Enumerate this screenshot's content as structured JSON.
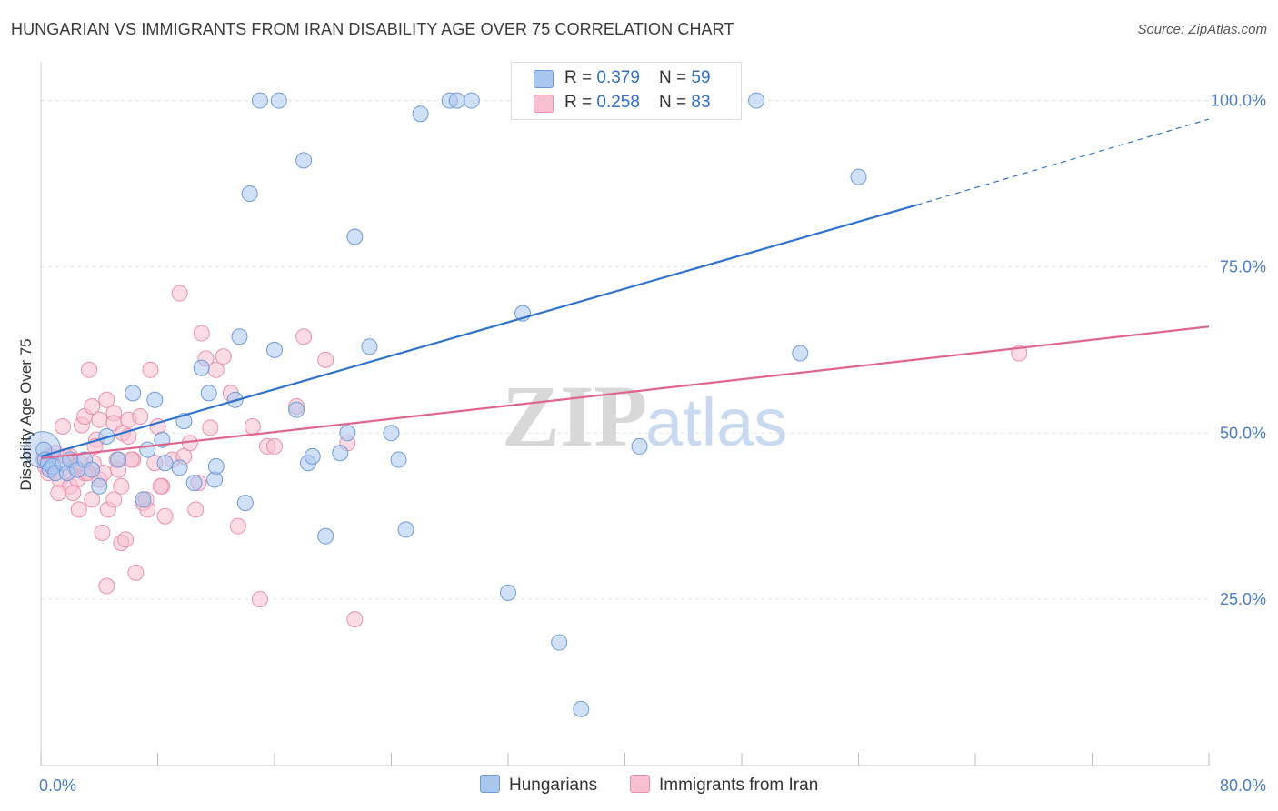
{
  "title": "HUNGARIAN VS IMMIGRANTS FROM IRAN DISABILITY AGE OVER 75 CORRELATION CHART",
  "source": "Source: ZipAtlas.com",
  "watermark": {
    "zip": "ZIP",
    "atlas": "atlas"
  },
  "legend_top": {
    "rows": [
      {
        "r_label": "R = ",
        "r_value": "0.379",
        "n_label": "N = ",
        "n_value": "59"
      },
      {
        "r_label": "R = ",
        "r_value": "0.258",
        "n_label": "N = ",
        "n_value": "83"
      }
    ]
  },
  "legend_bottom": {
    "series1": "Hungarians",
    "series2": "Immigrants from Iran"
  },
  "chart_data": {
    "type": "scatter",
    "title": "HUNGARIAN VS IMMIGRANTS FROM IRAN DISABILITY AGE OVER 75 CORRELATION CHART",
    "xlabel": "",
    "ylabel": "Disability Age Over 75",
    "xlim": [
      0,
      80
    ],
    "ylim": [
      0,
      105
    ],
    "x_tick_labels": [
      "0.0%",
      "80.0%"
    ],
    "y_ticks": [
      25,
      50,
      75,
      100
    ],
    "y_tick_labels": [
      "25.0%",
      "50.0%",
      "75.0%",
      "100.0%"
    ],
    "grid": true,
    "colors": {
      "hungarians_fill": "#a9c6ef",
      "hungarians_stroke": "#6f9ad8",
      "hungarians_line": "#2f72d0",
      "iran_fill": "#f7bfcf",
      "iran_stroke": "#e991ab",
      "iran_line": "#e0668e"
    },
    "series": [
      {
        "name": "Hungarians",
        "r": 0.379,
        "n": 59,
        "trend": {
          "x0": 0,
          "y0": 46.5,
          "x1": 60,
          "y1": 84.3,
          "x_dash_end": 80,
          "y_dash_end": 97.2
        },
        "points": [
          [
            0.2,
            47.5
          ],
          [
            0.3,
            46
          ],
          [
            0.5,
            45.5
          ],
          [
            0.6,
            44.5
          ],
          [
            0.8,
            45
          ],
          [
            1,
            44
          ],
          [
            1.5,
            45.5
          ],
          [
            1.8,
            44
          ],
          [
            2,
            46
          ],
          [
            2.5,
            44.5
          ],
          [
            3,
            46
          ],
          [
            3.5,
            44.5
          ],
          [
            4,
            42
          ],
          [
            4.5,
            49.5
          ],
          [
            5.3,
            46
          ],
          [
            6.3,
            56
          ],
          [
            7,
            40
          ],
          [
            7.3,
            47.5
          ],
          [
            7.8,
            55
          ],
          [
            8.3,
            49
          ],
          [
            8.5,
            45.5
          ],
          [
            9.5,
            44.8
          ],
          [
            9.8,
            51.8
          ],
          [
            10.5,
            42.5
          ],
          [
            11,
            59.8
          ],
          [
            11.5,
            56
          ],
          [
            11.9,
            43
          ],
          [
            12,
            45
          ],
          [
            13.3,
            55
          ],
          [
            13.6,
            64.5
          ],
          [
            14,
            39.5
          ],
          [
            14.3,
            86
          ],
          [
            15,
            100
          ],
          [
            16,
            62.5
          ],
          [
            16.3,
            100
          ],
          [
            17.5,
            53.5
          ],
          [
            18,
            91
          ],
          [
            18.3,
            45.5
          ],
          [
            18.6,
            46.5
          ],
          [
            19.5,
            34.5
          ],
          [
            20.5,
            47
          ],
          [
            21,
            50
          ],
          [
            21.5,
            79.5
          ],
          [
            22.5,
            63
          ],
          [
            24,
            50
          ],
          [
            24.5,
            46
          ],
          [
            25,
            35.5
          ],
          [
            26,
            98
          ],
          [
            28,
            100
          ],
          [
            28.5,
            100
          ],
          [
            29.5,
            100
          ],
          [
            32,
            26
          ],
          [
            33,
            68
          ],
          [
            35.5,
            18.5
          ],
          [
            37,
            8.5
          ],
          [
            41,
            48
          ],
          [
            49,
            100
          ],
          [
            52,
            62
          ],
          [
            56,
            88.5
          ]
        ]
      },
      {
        "name": "Immigrants from Iran",
        "r": 0.258,
        "n": 83,
        "trend": {
          "x0": 0,
          "y0": 46.2,
          "x1": 80,
          "y1": 66.0
        },
        "points": [
          [
            0.2,
            46
          ],
          [
            0.3,
            45
          ],
          [
            0.5,
            44
          ],
          [
            0.6,
            46.5
          ],
          [
            0.8,
            45.5
          ],
          [
            1,
            47
          ],
          [
            1,
            44
          ],
          [
            1.3,
            43
          ],
          [
            1.5,
            51
          ],
          [
            1.8,
            44
          ],
          [
            2,
            42
          ],
          [
            2,
            46.5
          ],
          [
            2.3,
            45
          ],
          [
            2.5,
            43
          ],
          [
            2.6,
            38.5
          ],
          [
            2.8,
            51.2
          ],
          [
            3,
            52.5
          ],
          [
            3,
            44
          ],
          [
            3.3,
            59.5
          ],
          [
            3.5,
            54
          ],
          [
            3.5,
            40
          ],
          [
            3.6,
            45.5
          ],
          [
            3.8,
            49
          ],
          [
            4,
            43
          ],
          [
            4,
            52
          ],
          [
            4.2,
            35
          ],
          [
            4.5,
            55
          ],
          [
            4.5,
            27
          ],
          [
            4.6,
            38.5
          ],
          [
            5,
            53
          ],
          [
            5,
            51.5
          ],
          [
            5,
            40
          ],
          [
            5.3,
            44.5
          ],
          [
            5.5,
            42
          ],
          [
            5.5,
            33.5
          ],
          [
            5.6,
            50
          ],
          [
            5.8,
            34
          ],
          [
            6,
            49.5
          ],
          [
            6,
            52
          ],
          [
            6.3,
            46
          ],
          [
            6.5,
            29
          ],
          [
            6.8,
            52.5
          ],
          [
            7,
            39.5
          ],
          [
            7.3,
            38.5
          ],
          [
            7.5,
            59.5
          ],
          [
            7.8,
            45.5
          ],
          [
            8,
            51
          ],
          [
            8.3,
            42
          ],
          [
            8.5,
            37.5
          ],
          [
            9,
            46
          ],
          [
            9.5,
            71
          ],
          [
            9.8,
            46.5
          ],
          [
            10.2,
            48.5
          ],
          [
            10.6,
            38.5
          ],
          [
            10.8,
            42.5
          ],
          [
            11,
            65
          ],
          [
            11.3,
            61.2
          ],
          [
            11.6,
            50.8
          ],
          [
            12,
            59.5
          ],
          [
            12.5,
            61.5
          ],
          [
            13,
            56
          ],
          [
            13.5,
            36
          ],
          [
            14.5,
            51
          ],
          [
            15,
            25
          ],
          [
            15.5,
            48
          ],
          [
            16,
            48
          ],
          [
            17.5,
            54
          ],
          [
            18,
            64.5
          ],
          [
            19.5,
            61
          ],
          [
            21,
            48.5
          ],
          [
            21.5,
            22
          ],
          [
            67,
            62
          ],
          [
            1.2,
            41
          ],
          [
            2.2,
            41
          ],
          [
            3.2,
            44
          ],
          [
            4.3,
            44
          ],
          [
            5.2,
            46
          ],
          [
            6.2,
            46
          ],
          [
            7.2,
            40
          ],
          [
            8.2,
            42
          ],
          [
            1.7,
            46.5
          ],
          [
            2.7,
            45.5
          ],
          [
            3.7,
            48
          ]
        ]
      }
    ]
  }
}
